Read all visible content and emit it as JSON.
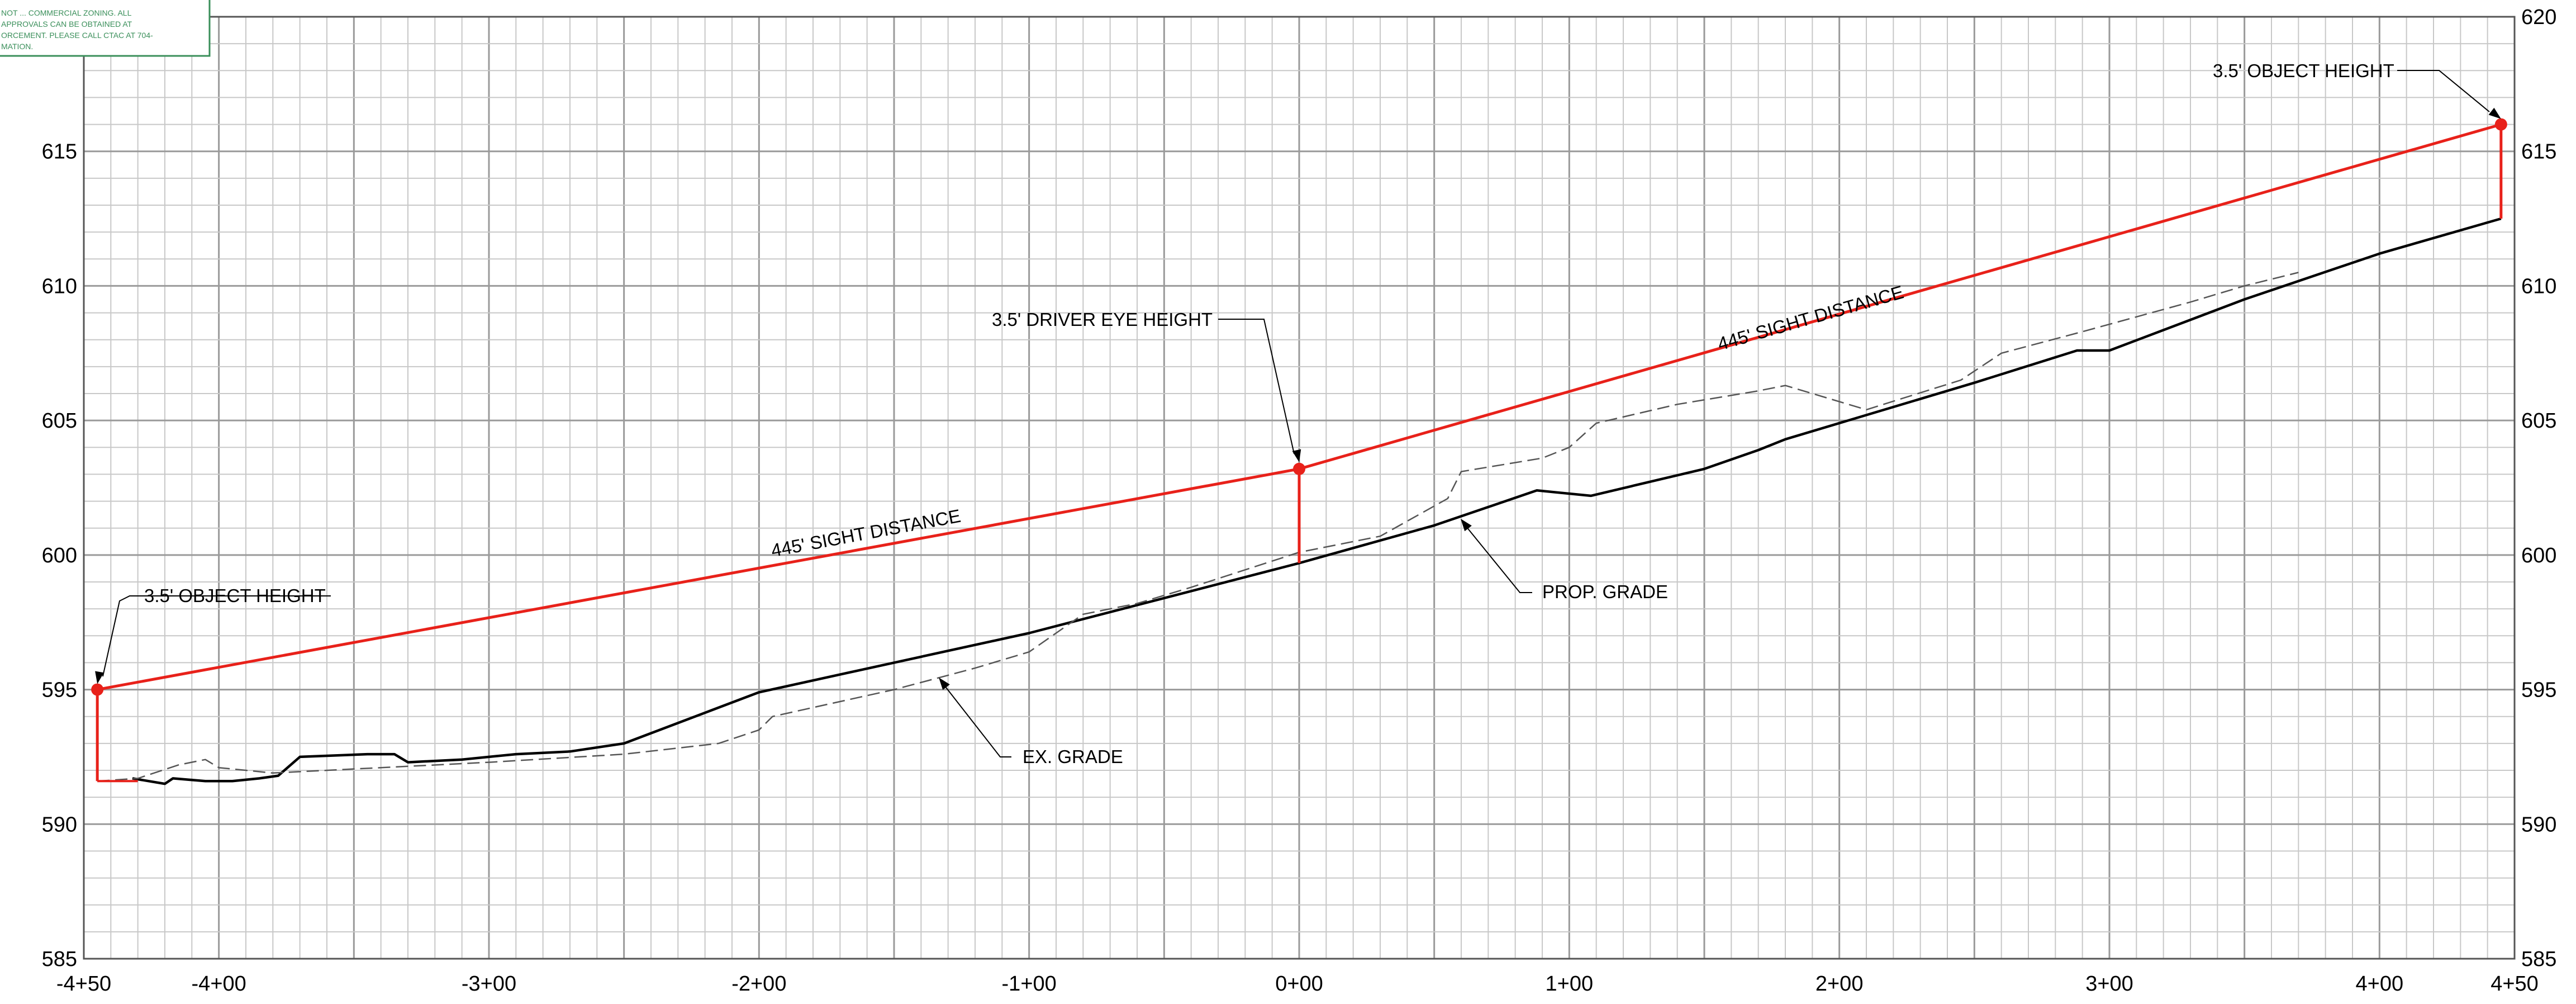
{
  "chart_data": {
    "type": "line",
    "title": "",
    "xlabel": "",
    "ylabel": "",
    "xlim": [
      -450,
      450
    ],
    "ylim": [
      585,
      620
    ],
    "x_ticks": [
      {
        "value": -450,
        "label": "-4+50"
      },
      {
        "value": -400,
        "label": "-4+00"
      },
      {
        "value": -300,
        "label": "-3+00"
      },
      {
        "value": -200,
        "label": "-2+00"
      },
      {
        "value": -100,
        "label": "-1+00"
      },
      {
        "value": 0,
        "label": "0+00"
      },
      {
        "value": 100,
        "label": "1+00"
      },
      {
        "value": 200,
        "label": "2+00"
      },
      {
        "value": 300,
        "label": "3+00"
      },
      {
        "value": 400,
        "label": "4+00"
      },
      {
        "value": 450,
        "label": "4+50"
      }
    ],
    "y_ticks": [
      {
        "value": 585,
        "label": "585"
      },
      {
        "value": 590,
        "label": "590"
      },
      {
        "value": 595,
        "label": "595"
      },
      {
        "value": 600,
        "label": "600"
      },
      {
        "value": 605,
        "label": "605"
      },
      {
        "value": 610,
        "label": "610"
      },
      {
        "value": 615,
        "label": "615"
      },
      {
        "value": 620,
        "label": "620"
      }
    ],
    "grid": true,
    "series": [
      {
        "name": "PROP. GRADE",
        "style": "solid",
        "color": "#000000",
        "points": [
          [
            -432,
            591.7
          ],
          [
            -420,
            591.5
          ],
          [
            -417,
            591.7
          ],
          [
            -405,
            591.6
          ],
          [
            -395,
            591.6
          ],
          [
            -385,
            591.7
          ],
          [
            -378,
            591.8
          ],
          [
            -370,
            592.5
          ],
          [
            -345,
            592.6
          ],
          [
            -335,
            592.6
          ],
          [
            -330,
            592.3
          ],
          [
            -310,
            592.4
          ],
          [
            -290,
            592.6
          ],
          [
            -270,
            592.7
          ],
          [
            -250,
            593.0
          ],
          [
            -200,
            594.9
          ],
          [
            -150,
            596.0
          ],
          [
            -100,
            597.1
          ],
          [
            -50,
            598.4
          ],
          [
            0,
            599.7
          ],
          [
            50,
            601.1
          ],
          [
            88,
            602.4
          ],
          [
            108,
            602.2
          ],
          [
            150,
            603.2
          ],
          [
            170,
            603.9
          ],
          [
            180,
            604.3
          ],
          [
            250,
            606.4
          ],
          [
            288,
            607.6
          ],
          [
            300,
            607.6
          ],
          [
            350,
            609.5
          ],
          [
            400,
            611.2
          ],
          [
            445,
            612.5
          ]
        ]
      },
      {
        "name": "EX. GRADE",
        "style": "dashed",
        "color": "#555555",
        "points": [
          [
            -445,
            591.6
          ],
          [
            -430,
            591.7
          ],
          [
            -415,
            592.2
          ],
          [
            -405,
            592.4
          ],
          [
            -400,
            592.1
          ],
          [
            -380,
            591.9
          ],
          [
            -300,
            592.3
          ],
          [
            -250,
            592.6
          ],
          [
            -215,
            593.0
          ],
          [
            -200,
            593.5
          ],
          [
            -195,
            594.0
          ],
          [
            -150,
            595.0
          ],
          [
            -120,
            595.8
          ],
          [
            -100,
            596.4
          ],
          [
            -90,
            597.1
          ],
          [
            -80,
            597.8
          ],
          [
            -60,
            598.2
          ],
          [
            -40,
            598.8
          ],
          [
            0,
            600.1
          ],
          [
            30,
            600.7
          ],
          [
            55,
            602.1
          ],
          [
            60,
            603.1
          ],
          [
            90,
            603.6
          ],
          [
            100,
            604.0
          ],
          [
            110,
            604.9
          ],
          [
            140,
            605.6
          ],
          [
            170,
            606.1
          ],
          [
            180,
            606.3
          ],
          [
            190,
            606.0
          ],
          [
            210,
            605.4
          ],
          [
            245,
            606.5
          ],
          [
            260,
            607.5
          ],
          [
            290,
            608.3
          ],
          [
            330,
            609.4
          ],
          [
            350,
            610.0
          ],
          [
            370,
            610.5
          ]
        ]
      },
      {
        "name": "445' SIGHT DISTANCE",
        "style": "solid",
        "color": "#e8211a",
        "points": [
          [
            -445,
            595.0
          ],
          [
            0,
            603.2
          ],
          [
            445,
            616.0
          ]
        ]
      }
    ],
    "annotations": {
      "object_height_left": "3.5' OBJECT HEIGHT",
      "object_height_right": "3.5' OBJECT HEIGHT",
      "driver_eye_height": "3.5' DRIVER EYE HEIGHT",
      "sight_distance_left": "445' SIGHT DISTANCE",
      "sight_distance_right": "445' SIGHT DISTANCE",
      "prop_grade": "PROP. GRADE",
      "ex_grade": "EX. GRADE"
    }
  },
  "note_box": {
    "lines": [
      "NOT ... COMMERCIAL ZONING. ALL",
      "APPROVALS CAN BE OBTAINED AT",
      "ORCEMENT. PLEASE CALL CTAC AT 704-",
      "MATION."
    ]
  },
  "colors": {
    "sight_line": "#e8211a",
    "grid_major": "#9a9a9a",
    "grid_minor": "#c8c8c8",
    "ground": "#000000",
    "existing": "#555555",
    "note": "#3a8f5a"
  }
}
